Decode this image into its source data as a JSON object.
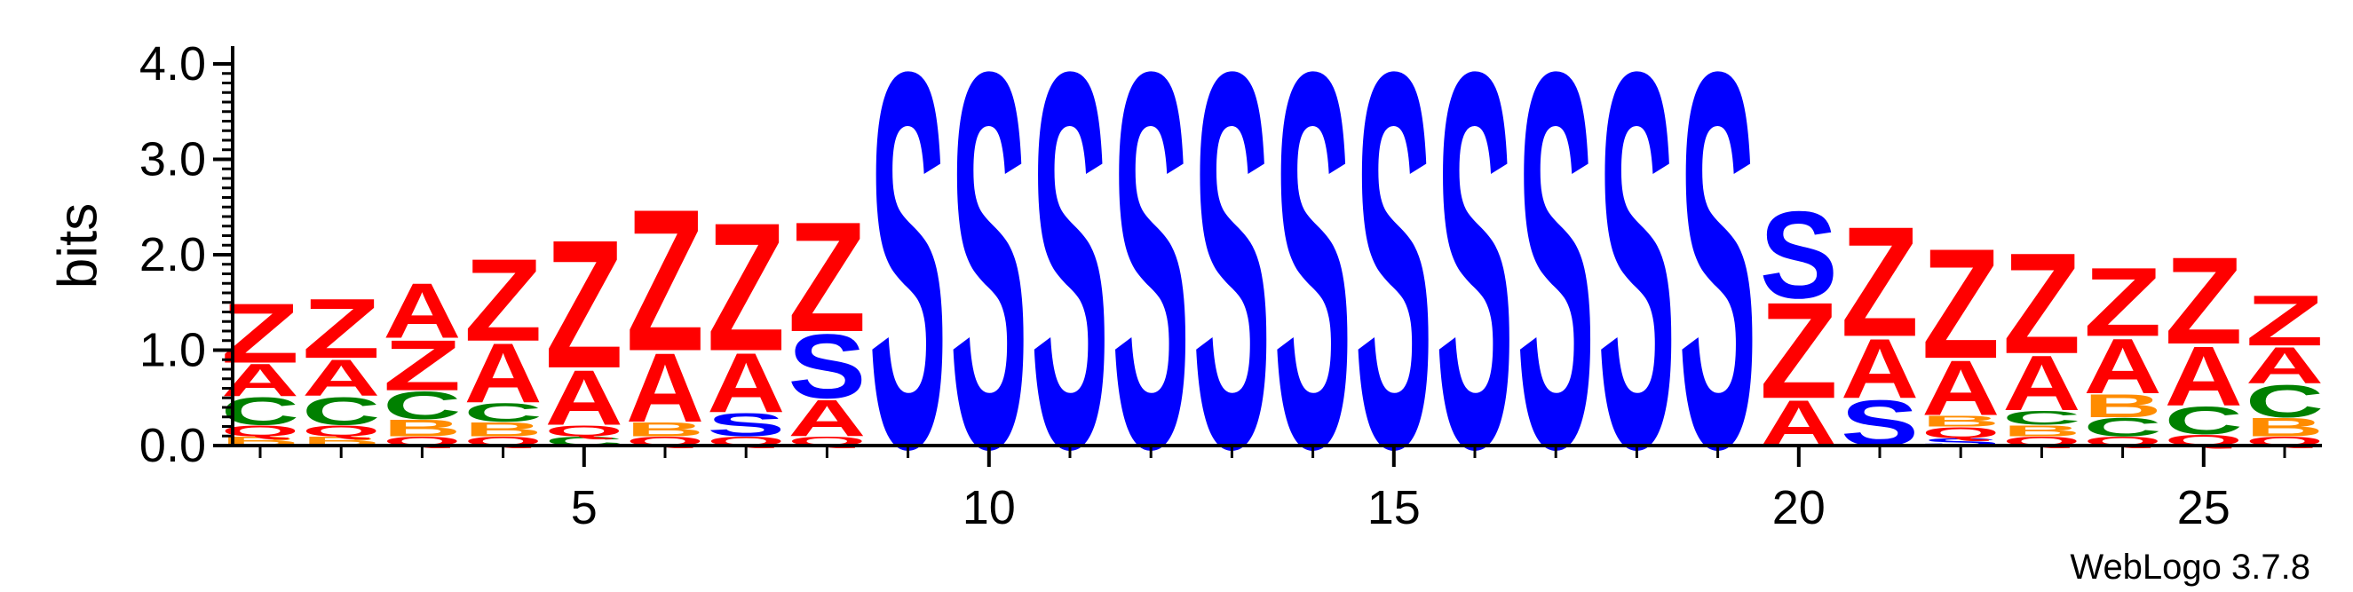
{
  "chart_data": {
    "type": "sequence-logo",
    "ylabel": "bits",
    "xlabel": "",
    "ylim": [
      0,
      4.0
    ],
    "y_ticks": [
      "0.0",
      "1.0",
      "2.0",
      "3.0",
      "4.0"
    ],
    "x_ticks": [
      "5",
      "10",
      "15",
      "20",
      "25"
    ],
    "x_tick_values": [
      5,
      10,
      15,
      20,
      25
    ],
    "credit": "WebLogo 3.7.8",
    "colors": {
      "Z": "#ff0000",
      "A": "#ff0000",
      "S": "#0000ff",
      "C": "#008000",
      "B": "#ff8c00",
      "Q": "#ff0000"
    },
    "positions": [
      {
        "pos": 1,
        "stack": [
          [
            "B",
            0.1
          ],
          [
            "Q",
            0.12
          ],
          [
            "C",
            0.3
          ],
          [
            "A",
            0.35
          ],
          [
            "Z",
            0.65
          ]
        ]
      },
      {
        "pos": 2,
        "stack": [
          [
            "B",
            0.1
          ],
          [
            "Q",
            0.12
          ],
          [
            "C",
            0.3
          ],
          [
            "A",
            0.4
          ],
          [
            "Z",
            0.65
          ]
        ]
      },
      {
        "pos": 3,
        "stack": [
          [
            "Q",
            0.1
          ],
          [
            "B",
            0.18
          ],
          [
            "C",
            0.3
          ],
          [
            "Z",
            0.55
          ],
          [
            "A",
            0.6
          ]
        ]
      },
      {
        "pos": 4,
        "stack": [
          [
            "Q",
            0.1
          ],
          [
            "B",
            0.15
          ],
          [
            "C",
            0.2
          ],
          [
            "A",
            0.65
          ],
          [
            "Z",
            0.9
          ]
        ]
      },
      {
        "pos": 5,
        "stack": [
          [
            "C",
            0.1
          ],
          [
            "Q",
            0.12
          ],
          [
            "A",
            0.6
          ],
          [
            "Z",
            1.4
          ]
        ]
      },
      {
        "pos": 6,
        "stack": [
          [
            "Q",
            0.1
          ],
          [
            "B",
            0.15
          ],
          [
            "A",
            0.75
          ],
          [
            "Z",
            1.55
          ]
        ]
      },
      {
        "pos": 7,
        "stack": [
          [
            "Q",
            0.1
          ],
          [
            "S",
            0.25
          ],
          [
            "A",
            0.65
          ],
          [
            "Z",
            1.4
          ]
        ]
      },
      {
        "pos": 8,
        "stack": [
          [
            "Q",
            0.1
          ],
          [
            "A",
            0.4
          ],
          [
            "S",
            0.7
          ],
          [
            "Z",
            1.2
          ]
        ]
      },
      {
        "pos": 9,
        "stack": [
          [
            "S",
            4.1
          ]
        ]
      },
      {
        "pos": 10,
        "stack": [
          [
            "S",
            4.1
          ]
        ]
      },
      {
        "pos": 11,
        "stack": [
          [
            "S",
            4.1
          ]
        ]
      },
      {
        "pos": 12,
        "stack": [
          [
            "S",
            4.1
          ]
        ]
      },
      {
        "pos": 13,
        "stack": [
          [
            "S",
            4.1
          ]
        ]
      },
      {
        "pos": 14,
        "stack": [
          [
            "S",
            4.1
          ]
        ]
      },
      {
        "pos": 15,
        "stack": [
          [
            "S",
            4.1
          ]
        ]
      },
      {
        "pos": 16,
        "stack": [
          [
            "S",
            4.1
          ]
        ]
      },
      {
        "pos": 17,
        "stack": [
          [
            "S",
            4.1
          ]
        ]
      },
      {
        "pos": 18,
        "stack": [
          [
            "S",
            4.1
          ]
        ]
      },
      {
        "pos": 19,
        "stack": [
          [
            "S",
            4.1
          ]
        ]
      },
      {
        "pos": 20,
        "stack": [
          [
            "A",
            0.5
          ],
          [
            "Z",
            1.05
          ],
          [
            "S",
            0.95
          ]
        ]
      },
      {
        "pos": 21,
        "stack": [
          [
            "S",
            0.5
          ],
          [
            "A",
            0.65
          ],
          [
            "Z",
            1.2
          ]
        ]
      },
      {
        "pos": 22,
        "stack": [
          [
            "S",
            0.08
          ],
          [
            "Q",
            0.12
          ],
          [
            "B",
            0.12
          ],
          [
            "A",
            0.6
          ],
          [
            "Z",
            1.2
          ]
        ]
      },
      {
        "pos": 23,
        "stack": [
          [
            "Q",
            0.1
          ],
          [
            "B",
            0.12
          ],
          [
            "C",
            0.15
          ],
          [
            "A",
            0.6
          ],
          [
            "Z",
            1.1
          ]
        ]
      },
      {
        "pos": 24,
        "stack": [
          [
            "Q",
            0.1
          ],
          [
            "C",
            0.2
          ],
          [
            "B",
            0.25
          ],
          [
            "A",
            0.6
          ],
          [
            "Z",
            0.75
          ]
        ]
      },
      {
        "pos": 25,
        "stack": [
          [
            "Q",
            0.12
          ],
          [
            "C",
            0.3
          ],
          [
            "A",
            0.65
          ],
          [
            "Z",
            0.95
          ]
        ]
      },
      {
        "pos": 26,
        "stack": [
          [
            "Q",
            0.1
          ],
          [
            "B",
            0.2
          ],
          [
            "C",
            0.35
          ],
          [
            "A",
            0.4
          ],
          [
            "Z",
            0.55
          ]
        ]
      }
    ]
  }
}
